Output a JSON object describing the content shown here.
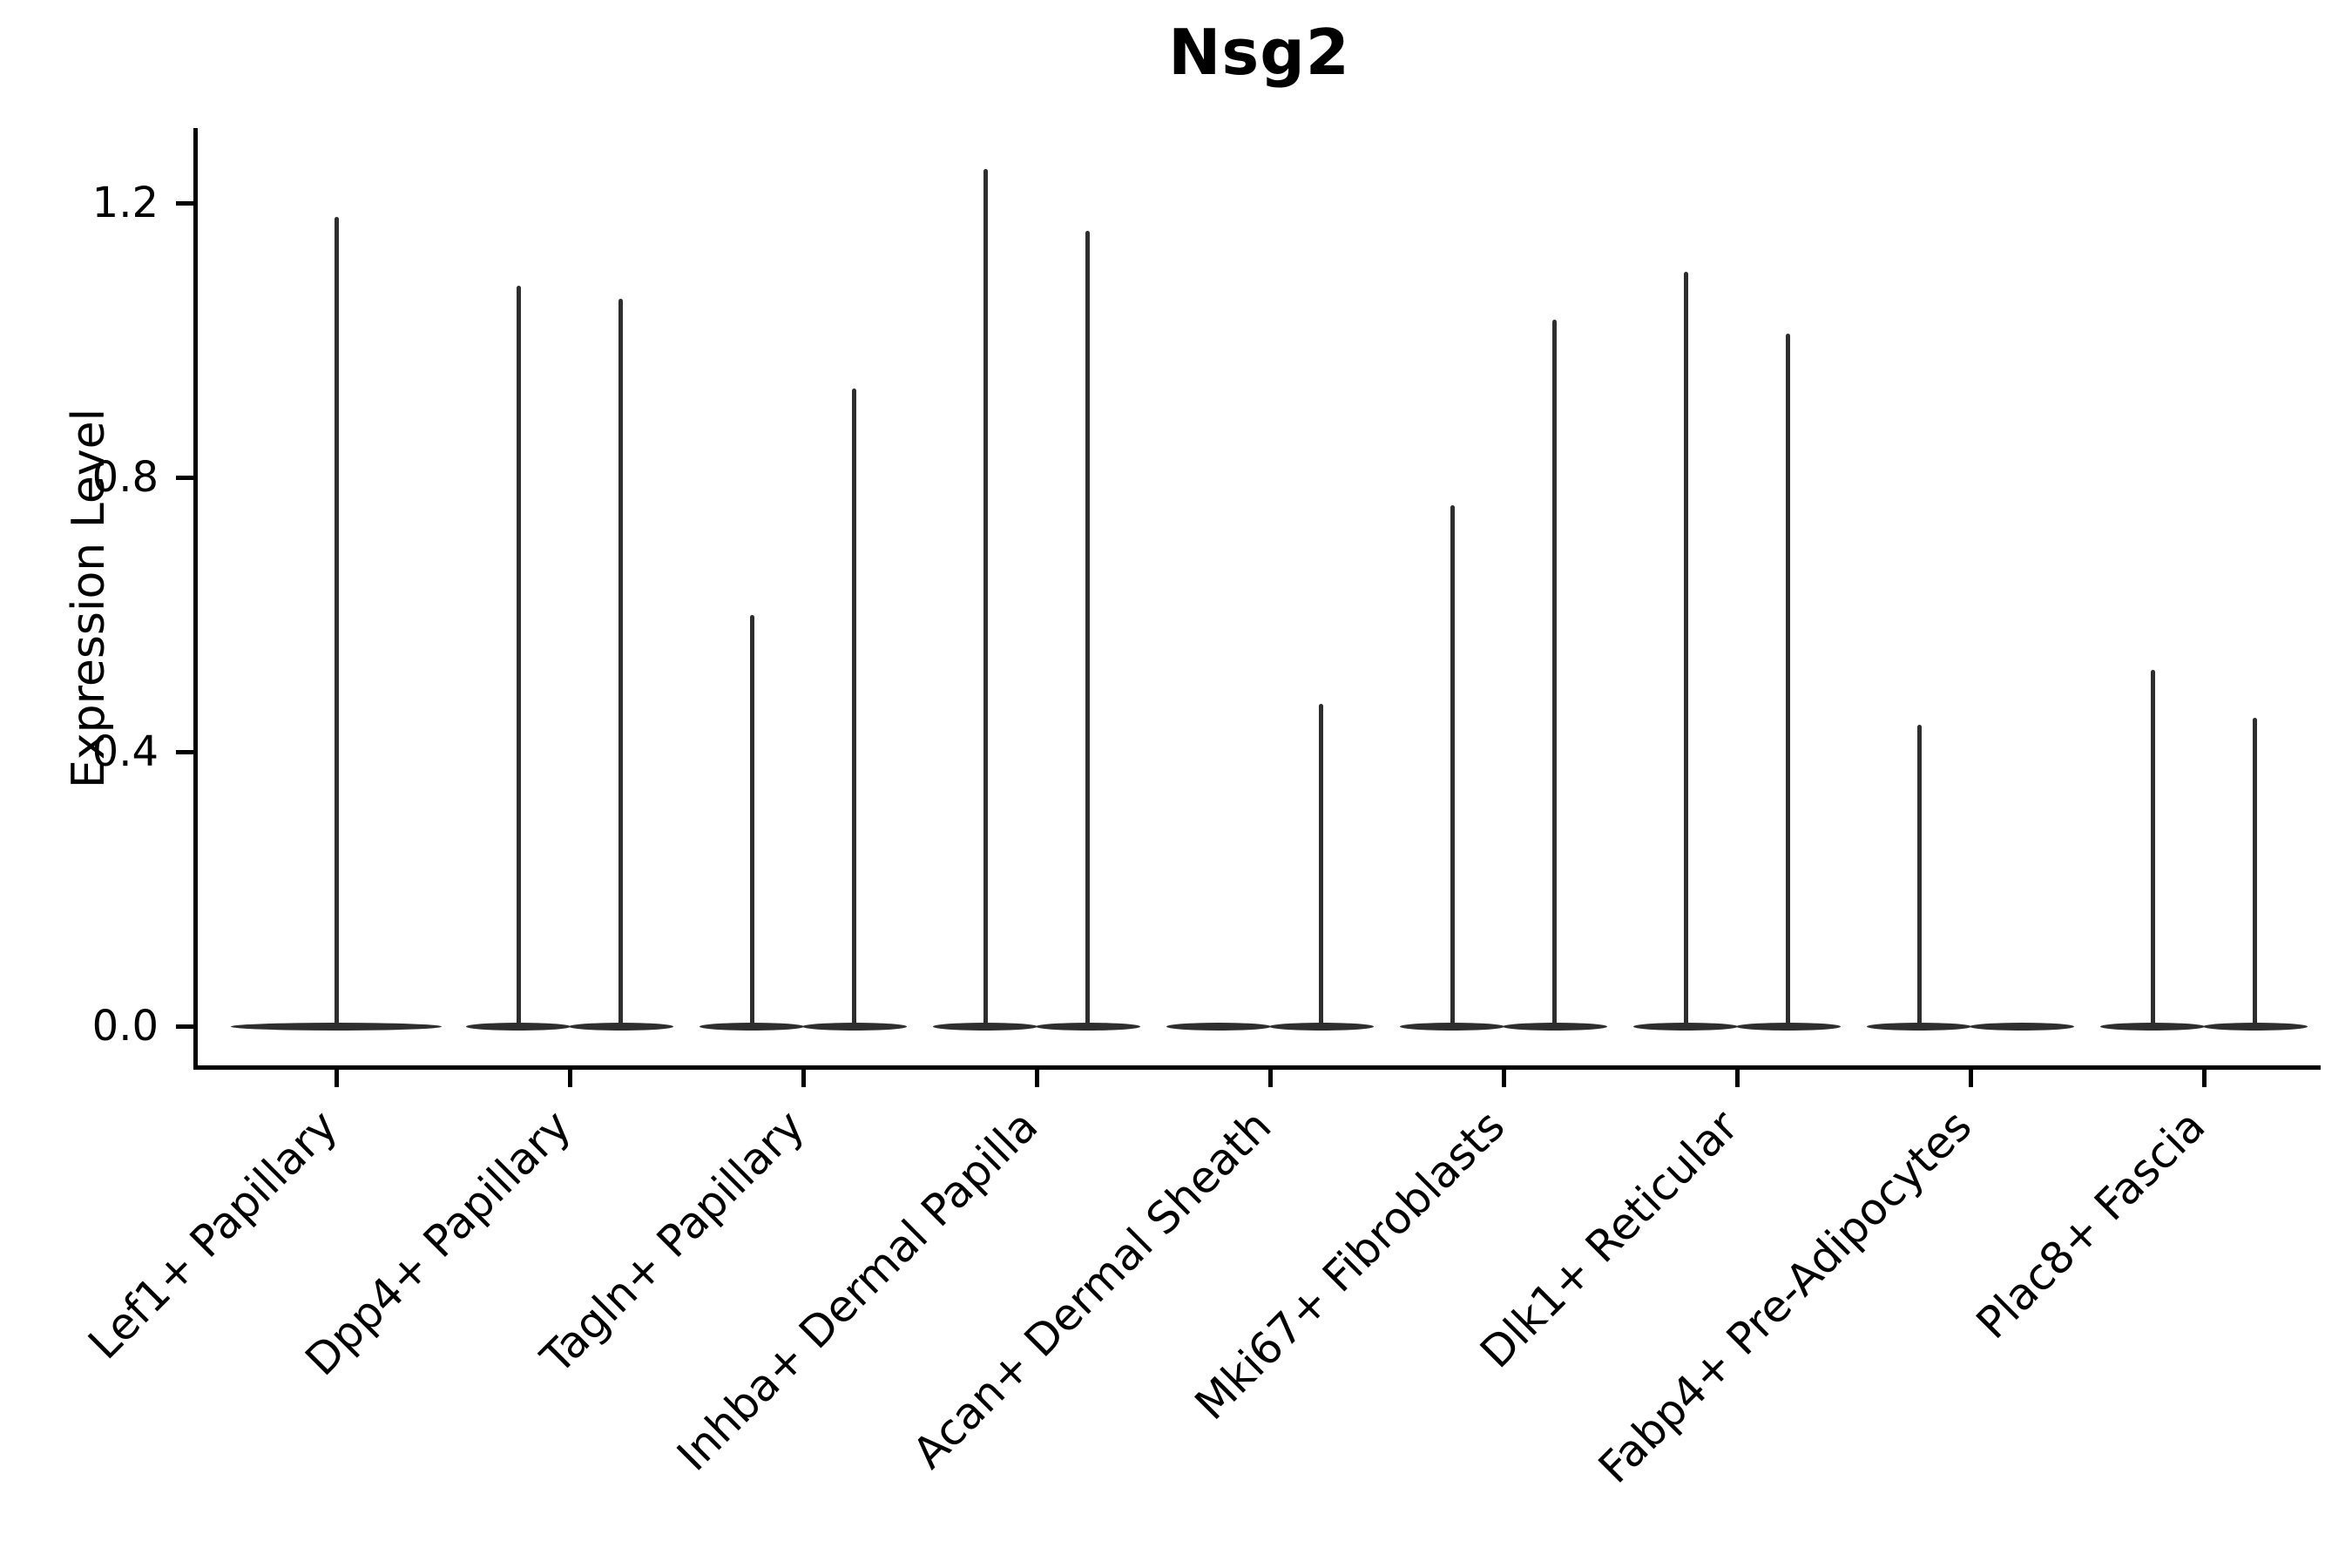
{
  "chart_data": {
    "type": "violin",
    "title": "Nsg2",
    "ylabel": "Expression Level",
    "xlabel": "",
    "grid": false,
    "legend": "none",
    "ink_color": "#2e2e2e",
    "axis_color": "#000000",
    "ylim": [
      -0.06,
      1.31
    ],
    "yticks": [
      {
        "label": "0.0",
        "value": 0.0
      },
      {
        "label": "0.4",
        "value": 0.4
      },
      {
        "label": "0.8",
        "value": 0.8
      },
      {
        "label": "1.2",
        "value": 1.2
      }
    ],
    "categories": [
      "Lef1+ Papillary",
      "Dpp4+ Papillary",
      "Tagln+ Papillary",
      "Inhba+ Dermal Papilla",
      "Acan+ Dermal Sheath",
      "Mki67+ Fibroblasts",
      "Dlk1+ Reticular",
      "Fabp4+ Pre-Adipocytes",
      "Plac8+ Fascia"
    ],
    "description": "Violin plot of Nsg2 expression; most cells at 0 (flat wide base per violin) with thin density spikes reaching the listed peak expression values.",
    "violins": [
      {
        "category": "Lef1+ Papillary",
        "parts": [
          {
            "offset": 0.0,
            "width": 0.9,
            "peak": 1.18
          }
        ]
      },
      {
        "category": "Dpp4+ Papillary",
        "parts": [
          {
            "offset": -0.22,
            "width": 0.45,
            "peak": 1.08
          },
          {
            "offset": 0.22,
            "width": 0.45,
            "peak": 1.06
          }
        ]
      },
      {
        "category": "Tagln+ Papillary",
        "parts": [
          {
            "offset": -0.22,
            "width": 0.45,
            "peak": 0.6
          },
          {
            "offset": 0.22,
            "width": 0.45,
            "peak": 0.93
          }
        ]
      },
      {
        "category": "Inhba+ Dermal Papilla",
        "parts": [
          {
            "offset": -0.22,
            "width": 0.45,
            "peak": 1.25
          },
          {
            "offset": 0.22,
            "width": 0.45,
            "peak": 1.16
          }
        ]
      },
      {
        "category": "Acan+ Dermal Sheath",
        "parts": [
          {
            "offset": -0.22,
            "width": 0.45,
            "peak": 0
          },
          {
            "offset": 0.22,
            "width": 0.45,
            "peak": 0.47
          }
        ]
      },
      {
        "category": "Mki67+ Fibroblasts",
        "parts": [
          {
            "offset": -0.22,
            "width": 0.45,
            "peak": 0.76
          },
          {
            "offset": 0.22,
            "width": 0.45,
            "peak": 1.03
          }
        ]
      },
      {
        "category": "Dlk1+ Reticular",
        "parts": [
          {
            "offset": -0.22,
            "width": 0.45,
            "peak": 1.1
          },
          {
            "offset": 0.22,
            "width": 0.45,
            "peak": 1.01
          }
        ]
      },
      {
        "category": "Fabp4+ Pre-Adipocytes",
        "parts": [
          {
            "offset": -0.22,
            "width": 0.45,
            "peak": 0.44
          },
          {
            "offset": 0.22,
            "width": 0.45,
            "peak": 0
          }
        ]
      },
      {
        "category": "Plac8+ Fascia",
        "parts": [
          {
            "offset": -0.22,
            "width": 0.45,
            "peak": 0.52
          },
          {
            "offset": 0.22,
            "width": 0.45,
            "peak": 0.45
          }
        ]
      }
    ]
  }
}
